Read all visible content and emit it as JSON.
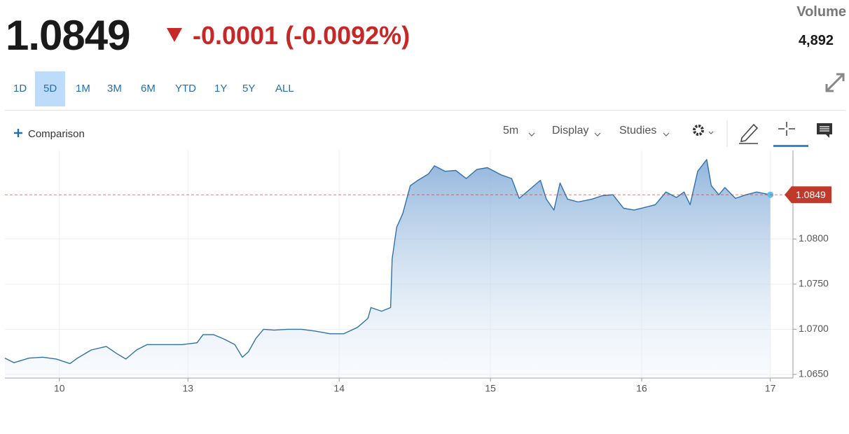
{
  "header": {
    "price": "1.0849",
    "change": "-0.0001 (-0.0092%)",
    "volume_label": "Volume",
    "volume": "4,892"
  },
  "ranges": [
    "1D",
    "5D",
    "1M",
    "3M",
    "6M",
    "YTD",
    "1Y",
    "5Y",
    "ALL"
  ],
  "toolbar": {
    "comparison": "Comparison",
    "interval": "5m",
    "display": "Display",
    "studies": "Studies"
  },
  "chart_data": {
    "type": "line",
    "color": "#2f72a8",
    "grid": true,
    "last_value": 1.0849,
    "last_value_color": "#c0392b",
    "x": [
      -0.36,
      -0.3,
      -0.2,
      -0.11,
      -0.02,
      0.07,
      0.12,
      0.21,
      0.31,
      0.38,
      0.44,
      0.51,
      0.58,
      0.68,
      0.81,
      0.91,
      0.95,
      1.02,
      1.09,
      1.16,
      1.21,
      1.25,
      1.3,
      1.35,
      1.42,
      1.51,
      1.6,
      1.69,
      1.79,
      1.88,
      1.97,
      2.04,
      2.06,
      2.13,
      2.19,
      2.2,
      2.23,
      2.27,
      2.32,
      2.37,
      2.44,
      2.48,
      2.55,
      2.62,
      2.69,
      2.76,
      2.83,
      2.92,
      2.99,
      3.04,
      3.11,
      3.18,
      3.22,
      3.27,
      3.31,
      3.36,
      3.43,
      3.52,
      3.59,
      3.66,
      3.73,
      3.8,
      3.87,
      3.94,
      4.01,
      4.08,
      4.13,
      4.17,
      4.22,
      4.28,
      4.31,
      4.36,
      4.4,
      4.47,
      4.54,
      4.61,
      4.7
    ],
    "values": [
      1.0668,
      1.0663,
      1.0668,
      1.0669,
      1.0667,
      1.0662,
      1.0668,
      1.0677,
      1.0681,
      1.0673,
      1.0667,
      1.0677,
      1.0683,
      1.0683,
      1.0683,
      1.0685,
      1.0694,
      1.0694,
      1.0689,
      1.0683,
      1.0669,
      1.0675,
      1.069,
      1.07,
      1.0699,
      1.07,
      1.07,
      1.0698,
      1.0695,
      1.0695,
      1.0702,
      1.0712,
      1.0724,
      1.072,
      1.0724,
      1.0778,
      1.0813,
      1.0828,
      1.0859,
      1.0865,
      1.0872,
      1.0881,
      1.0875,
      1.0876,
      1.0867,
      1.0877,
      1.0879,
      1.0871,
      1.0867,
      1.0845,
      1.0855,
      1.0865,
      1.0844,
      1.0832,
      1.0862,
      1.0844,
      1.0841,
      1.0844,
      1.0848,
      1.0849,
      1.0834,
      1.0832,
      1.0835,
      1.0838,
      1.0852,
      1.0846,
      1.0852,
      1.0838,
      1.0875,
      1.0888,
      1.0859,
      1.0849,
      1.0857,
      1.0845,
      1.0849,
      1.0852,
      1.0849
    ],
    "xlim": [
      -0.36,
      4.85
    ],
    "xticks": [
      {
        "value": 0,
        "label": "10"
      },
      {
        "value": 0.85,
        "label": "13"
      },
      {
        "value": 1.85,
        "label": "14"
      },
      {
        "value": 2.85,
        "label": "15"
      },
      {
        "value": 3.85,
        "label": "16"
      },
      {
        "value": 4.7,
        "label": "17"
      }
    ],
    "ylim": [
      1.0646,
      1.0898
    ],
    "yticks": [
      {
        "value": 1.065,
        "label": "1.0650"
      },
      {
        "value": 1.07,
        "label": "1.0700"
      },
      {
        "value": 1.075,
        "label": "1.0750"
      },
      {
        "value": 1.08,
        "label": "1.0800"
      }
    ]
  }
}
